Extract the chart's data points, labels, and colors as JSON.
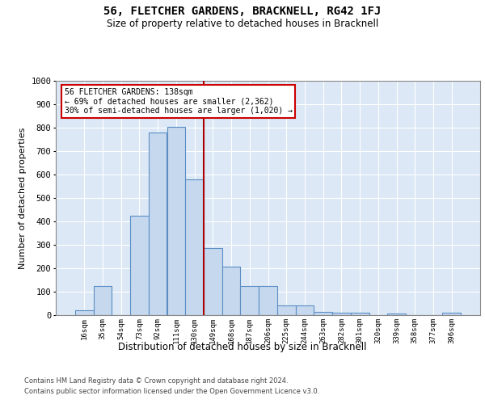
{
  "title": "56, FLETCHER GARDENS, BRACKNELL, RG42 1FJ",
  "subtitle": "Size of property relative to detached houses in Bracknell",
  "xlabel": "Distribution of detached houses by size in Bracknell",
  "ylabel": "Number of detached properties",
  "categories": [
    "16sqm",
    "35sqm",
    "54sqm",
    "73sqm",
    "92sqm",
    "111sqm",
    "130sqm",
    "149sqm",
    "168sqm",
    "187sqm",
    "206sqm",
    "225sqm",
    "244sqm",
    "263sqm",
    "282sqm",
    "301sqm",
    "320sqm",
    "339sqm",
    "358sqm",
    "377sqm",
    "396sqm"
  ],
  "values": [
    20,
    125,
    0,
    425,
    780,
    805,
    580,
    285,
    208,
    125,
    125,
    42,
    42,
    15,
    10,
    10,
    0,
    8,
    0,
    0,
    10
  ],
  "bar_color": "#c5d8ee",
  "bar_edge_color": "#5b8ec5",
  "vline_position": 6.5,
  "vline_color": "#aa0000",
  "annotation_line1": "56 FLETCHER GARDENS: 138sqm",
  "annotation_line2": "← 69% of detached houses are smaller (2,362)",
  "annotation_line3": "30% of semi-detached houses are larger (1,020) →",
  "annotation_box_facecolor": "white",
  "annotation_box_edgecolor": "#cc0000",
  "ylim": [
    0,
    1000
  ],
  "yticks": [
    0,
    100,
    200,
    300,
    400,
    500,
    600,
    700,
    800,
    900,
    1000
  ],
  "plot_bg_color": "#dce8f5",
  "grid_color": "#ffffff",
  "footer_line1": "Contains HM Land Registry data © Crown copyright and database right 2024.",
  "footer_line2": "Contains public sector information licensed under the Open Government Licence v3.0."
}
